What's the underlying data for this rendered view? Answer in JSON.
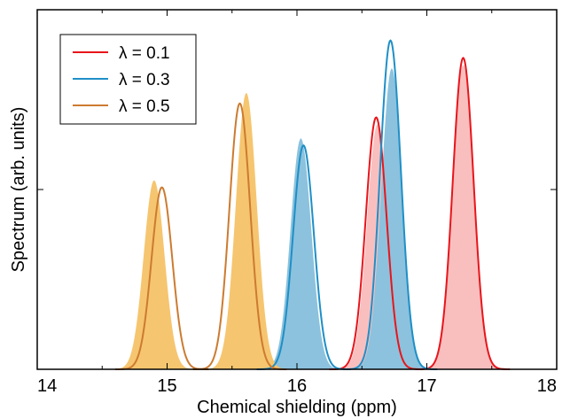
{
  "chart_data": {
    "type": "area",
    "xlabel": "Chemical shielding (ppm)",
    "ylabel": "Spectrum (arb. units)",
    "xlim": [
      14,
      18
    ],
    "ylim": [
      0,
      1
    ],
    "xticks": [
      "14",
      "15",
      "16",
      "17",
      "18"
    ],
    "grid": false,
    "legend_position": "top-left",
    "y_tick_labels_shown": false,
    "series": [
      {
        "name": "λ = 0.1",
        "color": "#e8151b",
        "fill_color": "#f9bfbf",
        "peaks": [
          {
            "line_center": 16.61,
            "line_height": 0.72,
            "fill_center": 16.62,
            "fill_height": 0.7
          },
          {
            "line_center": 17.28,
            "line_height": 0.89,
            "fill_center": 17.28,
            "fill_height": 0.87
          }
        ]
      },
      {
        "name": "λ = 0.3",
        "color": "#1f8fc7",
        "fill_color": "#8cc2dd",
        "peaks": [
          {
            "line_center": 16.05,
            "line_height": 0.64,
            "fill_center": 16.03,
            "fill_height": 0.66
          },
          {
            "line_center": 16.72,
            "line_height": 0.94,
            "fill_center": 16.73,
            "fill_height": 0.86
          }
        ]
      },
      {
        "name": "λ = 0.5",
        "color": "#cc7b30",
        "fill_color": "#f6c56f",
        "peaks": [
          {
            "line_center": 14.96,
            "line_height": 0.52,
            "fill_center": 14.9,
            "fill_height": 0.54
          },
          {
            "line_center": 15.56,
            "line_height": 0.76,
            "fill_center": 15.61,
            "fill_height": 0.79
          }
        ]
      }
    ]
  }
}
